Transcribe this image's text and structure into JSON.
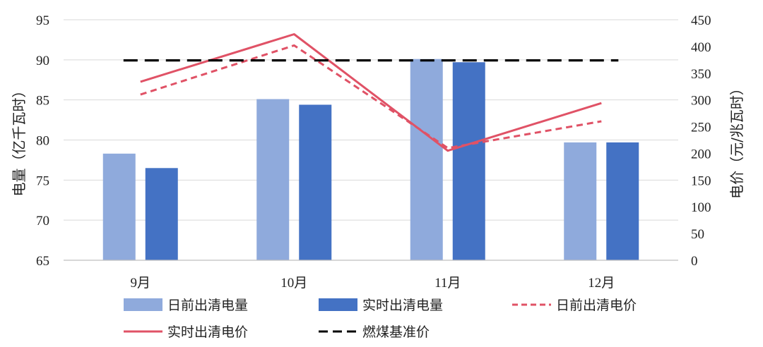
{
  "chart_data": {
    "type": "bar",
    "categories": [
      "9月",
      "10月",
      "11月",
      "12月"
    ],
    "ylabel": "电量（亿千瓦时）",
    "y2label": "电价（元/兆瓦时）",
    "ylim": [
      65,
      95
    ],
    "yticks": [
      "95",
      "90",
      "85",
      "80",
      "75",
      "70",
      "65"
    ],
    "y2lim": [
      0,
      450
    ],
    "y2ticks": [
      "450",
      "400",
      "350",
      "300",
      "250",
      "200",
      "150",
      "100",
      "50",
      "0"
    ],
    "grid": true,
    "legend_position": "bottom",
    "series": [
      {
        "name": "日前出清电量",
        "kind": "bar",
        "axis": "left",
        "color": "#8faadc",
        "values": [
          78.3,
          85.1,
          90.1,
          79.7
        ]
      },
      {
        "name": "实时出清电量",
        "kind": "bar",
        "axis": "left",
        "color": "#4472c4",
        "values": [
          76.5,
          84.4,
          89.7,
          79.7
        ]
      },
      {
        "name": "日前出清电价",
        "kind": "line",
        "style": "dashed",
        "axis": "right",
        "color": "#e05266",
        "values": [
          310,
          402,
          210,
          260
        ]
      },
      {
        "name": "实时出清电价",
        "kind": "line",
        "style": "solid",
        "axis": "right",
        "color": "#e05266",
        "values": [
          334,
          423,
          205,
          294
        ]
      },
      {
        "name": "燃煤基准价",
        "kind": "line",
        "style": "dashed",
        "axis": "right",
        "color": "#000000",
        "values": [
          374,
          374,
          374,
          374
        ]
      }
    ]
  }
}
